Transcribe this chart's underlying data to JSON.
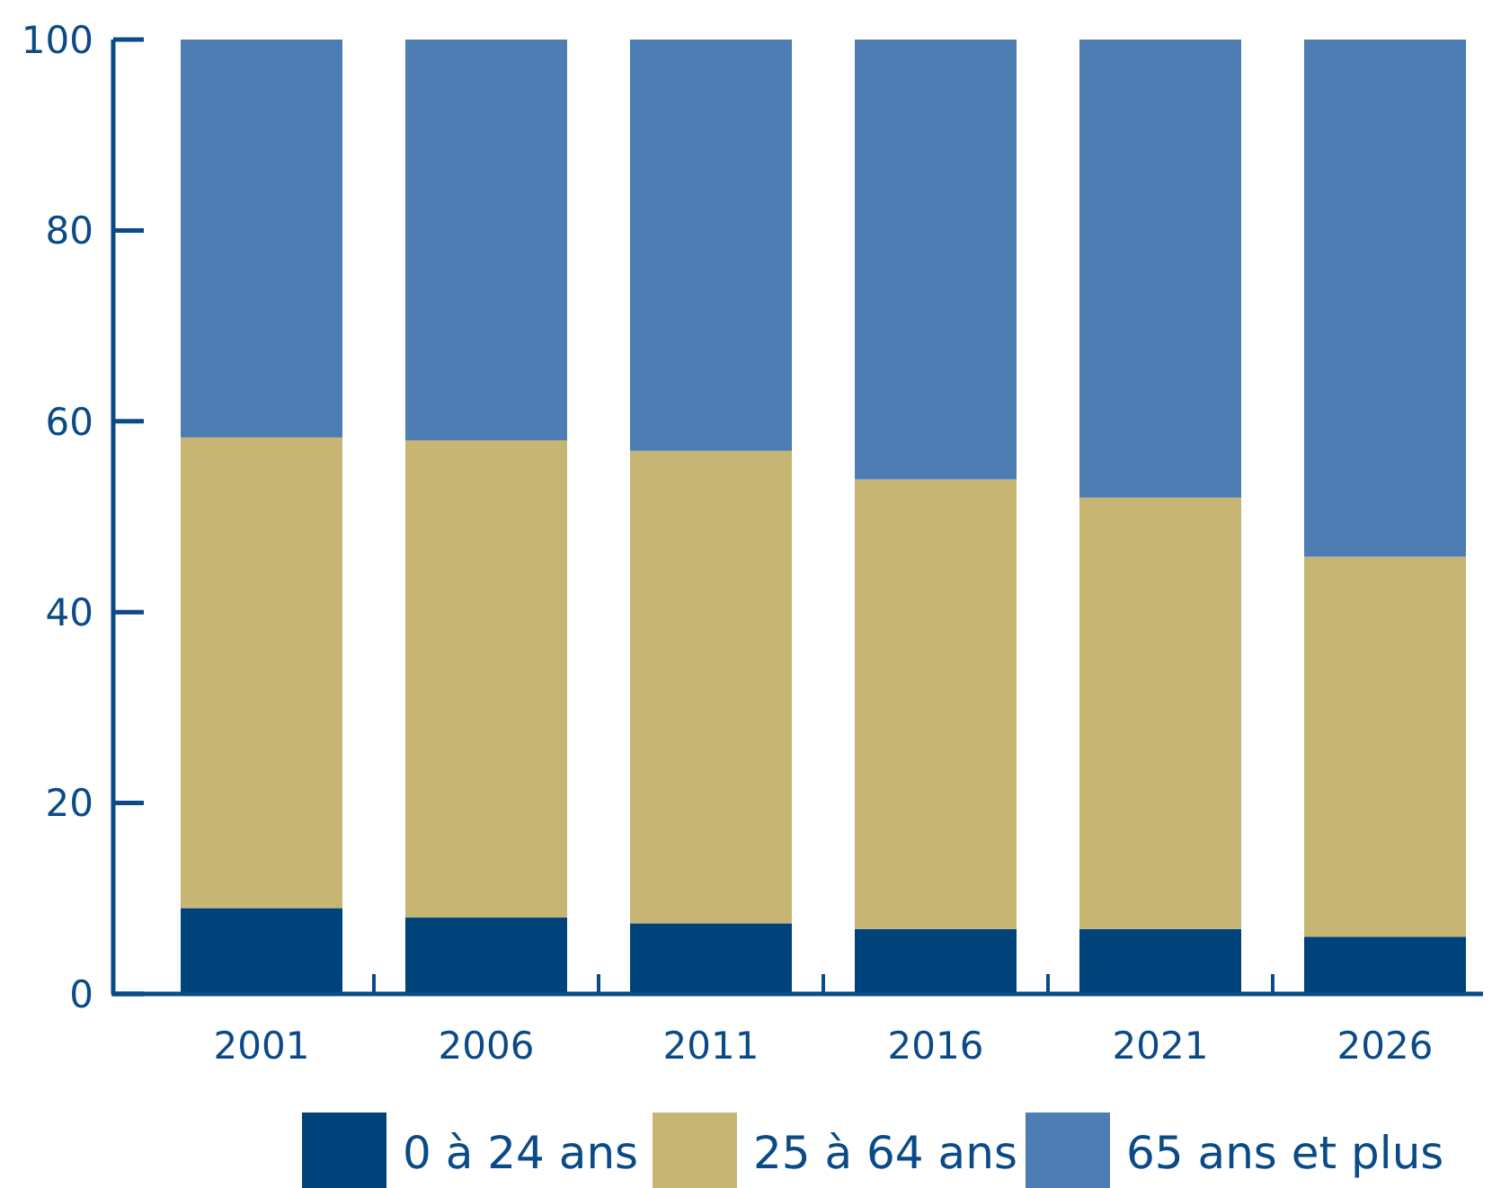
{
  "chart_data": {
    "type": "bar",
    "stacked": true,
    "categories": [
      "2001",
      "2006",
      "2011",
      "2016",
      "2021",
      "2026"
    ],
    "series": [
      {
        "name": "0 à 24 ans",
        "color": "#00437b",
        "values": [
          9,
          8,
          7.4,
          6.8,
          6.8,
          6
        ]
      },
      {
        "name": "25 à 64 ans",
        "color": "#c7b574",
        "values": [
          49.3,
          50,
          49.5,
          47.1,
          45.2,
          39.8
        ]
      },
      {
        "name": "65 ans et plus",
        "color": "#4d7db2",
        "values": [
          41.7,
          42,
          43.1,
          46.1,
          48,
          54.2
        ]
      }
    ],
    "ylim": [
      0,
      100
    ],
    "yticks": [
      0,
      20,
      40,
      60,
      80,
      100
    ],
    "legend": "bottom"
  }
}
